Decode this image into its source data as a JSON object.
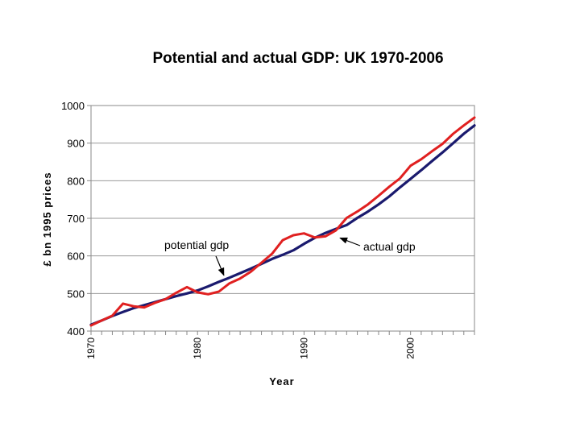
{
  "chart_data": {
    "type": "line",
    "title": "Potential and actual GDP: UK 1970-2006",
    "xlabel": "Year",
    "ylabel": "£ bn 1995 prices",
    "xlim": [
      1970,
      2006
    ],
    "ylim": [
      400,
      1000
    ],
    "y_ticks": [
      400,
      500,
      600,
      700,
      800,
      900,
      1000
    ],
    "y_tick_labels": [
      "400",
      "500",
      "600",
      "700",
      "800",
      "900",
      "1000"
    ],
    "x_tick_labels": [
      "1970",
      "1980",
      "1990",
      "2000"
    ],
    "x_tick_values": [
      1970,
      1980,
      1990,
      2000
    ],
    "grid": true,
    "series": [
      {
        "name": "potential gdp",
        "color": "#1a1a6e",
        "x": [
          1970,
          1971,
          1972,
          1973,
          1974,
          1975,
          1976,
          1977,
          1978,
          1979,
          1980,
          1981,
          1982,
          1983,
          1984,
          1985,
          1986,
          1987,
          1988,
          1989,
          1990,
          1991,
          1992,
          1993,
          1994,
          1995,
          1996,
          1997,
          1998,
          1999,
          2000,
          2001,
          2002,
          2003,
          2004,
          2005,
          2006
        ],
        "values": [
          417,
          428,
          440,
          451,
          461,
          469,
          477,
          485,
          493,
          500,
          508,
          519,
          531,
          542,
          554,
          566,
          579,
          592,
          603,
          615,
          632,
          648,
          661,
          672,
          682,
          701,
          718,
          737,
          758,
          782,
          805,
          828,
          852,
          875,
          900,
          925,
          947
        ]
      },
      {
        "name": "actual gdp",
        "color": "#e02020",
        "x": [
          1970,
          1971,
          1972,
          1973,
          1974,
          1975,
          1976,
          1977,
          1978,
          1979,
          1980,
          1981,
          1982,
          1983,
          1984,
          1985,
          1986,
          1987,
          1988,
          1989,
          1990,
          1991,
          1992,
          1993,
          1994,
          1995,
          1996,
          1997,
          1998,
          1999,
          2000,
          2001,
          2002,
          2003,
          2004,
          2005,
          2006
        ],
        "values": [
          415,
          428,
          441,
          473,
          466,
          463,
          475,
          485,
          502,
          517,
          503,
          498,
          505,
          527,
          540,
          558,
          582,
          606,
          642,
          655,
          660,
          649,
          652,
          668,
          701,
          718,
          737,
          760,
          784,
          806,
          840,
          857,
          878,
          898,
          925,
          947,
          968
        ]
      }
    ],
    "annotations": [
      {
        "text": "potential gdp",
        "target_year": 1983,
        "target_value": 542
      },
      {
        "text": "actual gdp",
        "target_year": 1993,
        "target_value": 652
      }
    ]
  }
}
